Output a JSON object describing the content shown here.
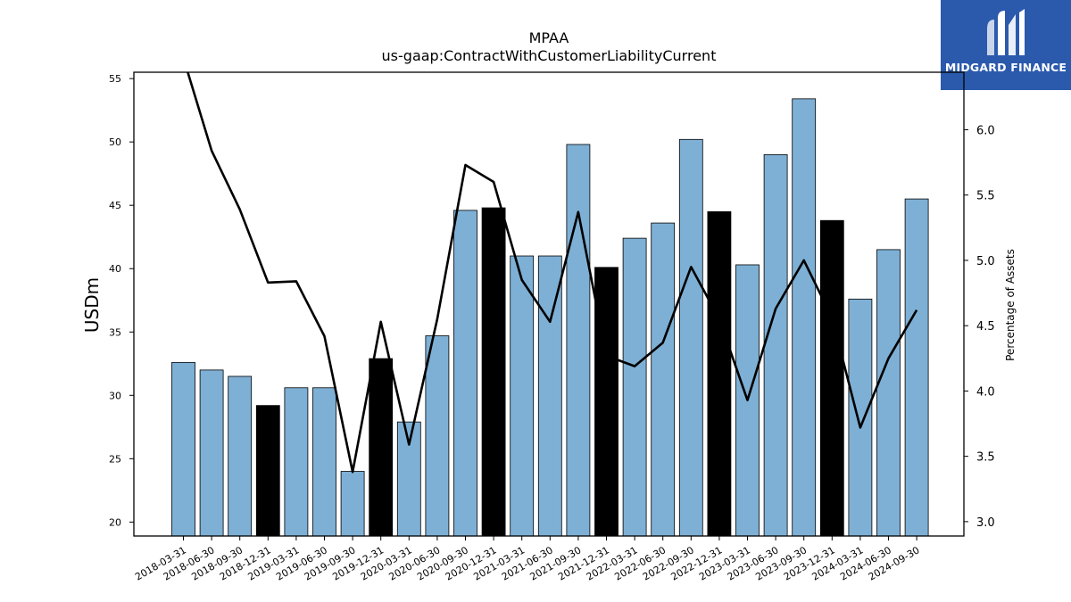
{
  "brand": {
    "name": "MIDGARD FINANCE",
    "bg_color": "#2b5aad"
  },
  "chart_data": {
    "type": "bar",
    "title": "MPAA",
    "subtitle": "us-gaap:ContractWithCustomerLiabilityCurrent",
    "ylabel": "USDm",
    "y2label": "Percentage of Assets",
    "ylim": [
      18.9,
      55.5
    ],
    "y2lim": [
      2.89,
      6.44
    ],
    "yticks": [
      20,
      25,
      30,
      35,
      40,
      45,
      50,
      55
    ],
    "y2ticks": [
      "3.0",
      "3.5",
      "4.0",
      "4.5",
      "5.0",
      "5.5",
      "6.0"
    ],
    "categories": [
      "2018-03-31",
      "2018-06-30",
      "2018-09-30",
      "2018-12-31",
      "2019-03-31",
      "2019-06-30",
      "2019-09-30",
      "2019-12-31",
      "2020-03-31",
      "2020-06-30",
      "2020-09-30",
      "2020-12-31",
      "2021-03-31",
      "2021-06-30",
      "2021-09-30",
      "2021-12-31",
      "2022-03-31",
      "2022-06-30",
      "2022-09-30",
      "2022-12-31",
      "2023-03-31",
      "2023-06-30",
      "2023-09-30",
      "2023-12-31",
      "2024-03-31",
      "2024-06-30",
      "2024-09-30"
    ],
    "series": [
      {
        "type": "bar",
        "axis": "left",
        "values": [
          32.6,
          32.0,
          31.5,
          29.2,
          30.6,
          30.6,
          24.0,
          32.9,
          27.9,
          34.7,
          44.6,
          44.8,
          41.0,
          41.0,
          49.8,
          40.1,
          42.4,
          43.6,
          50.2,
          44.5,
          40.3,
          49.0,
          53.4,
          43.8,
          37.6,
          41.5,
          45.5
        ],
        "highlight": [
          false,
          false,
          false,
          true,
          false,
          false,
          false,
          true,
          false,
          false,
          false,
          true,
          false,
          false,
          false,
          true,
          false,
          false,
          false,
          true,
          false,
          false,
          false,
          true,
          false,
          false,
          false
        ]
      },
      {
        "type": "line",
        "axis": "right",
        "values": [
          6.55,
          5.84,
          5.39,
          4.83,
          4.84,
          4.42,
          3.38,
          4.53,
          3.59,
          4.55,
          5.73,
          5.6,
          4.85,
          4.53,
          5.37,
          4.27,
          4.19,
          4.37,
          4.95,
          4.55,
          3.93,
          4.63,
          5.0,
          4.56,
          3.72,
          4.25,
          4.62
        ]
      }
    ],
    "colors": {
      "bar": "#7eb0d5",
      "bar_highlight": "#000000",
      "line": "#000000"
    },
    "grid": false,
    "legend": "none"
  }
}
